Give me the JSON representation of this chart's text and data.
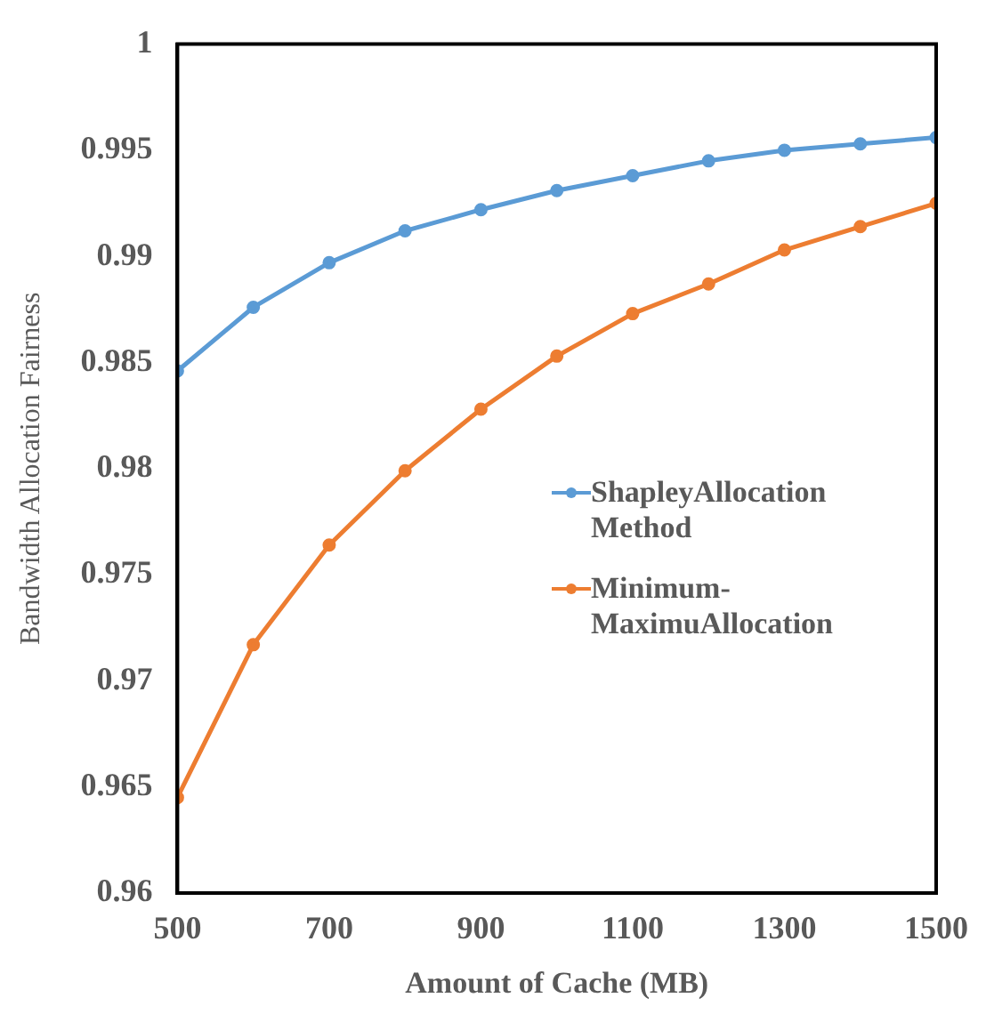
{
  "chart_data": {
    "type": "line",
    "xlabel": "Amount of Cache (MB)",
    "ylabel": "Bandwidth Allocation Fairness",
    "x": [
      500,
      600,
      700,
      800,
      900,
      1000,
      1100,
      1200,
      1300,
      1400,
      1500
    ],
    "series": [
      {
        "name": "ShapleyAllocation Method",
        "color": "#5b9bd5",
        "values": [
          0.9846,
          0.9876,
          0.9897,
          0.9912,
          0.9922,
          0.9931,
          0.9938,
          0.9945,
          0.995,
          0.9953,
          0.9956
        ]
      },
      {
        "name": "Minimum-MaximuAllocation",
        "color": "#ed7d31",
        "values": [
          0.9645,
          0.9717,
          0.9764,
          0.9799,
          0.9828,
          0.9853,
          0.9873,
          0.9887,
          0.9903,
          0.9914,
          0.9925
        ]
      }
    ],
    "xlim": [
      500,
      1500
    ],
    "xticks": [
      500,
      700,
      900,
      1100,
      1300,
      1500
    ],
    "ylim": [
      0.96,
      1
    ],
    "yticks": [
      0.96,
      0.965,
      0.97,
      0.975,
      0.98,
      0.985,
      0.99,
      0.995,
      1
    ],
    "grid": false,
    "legend": "right",
    "marker": "circle",
    "line_style": "solid"
  }
}
